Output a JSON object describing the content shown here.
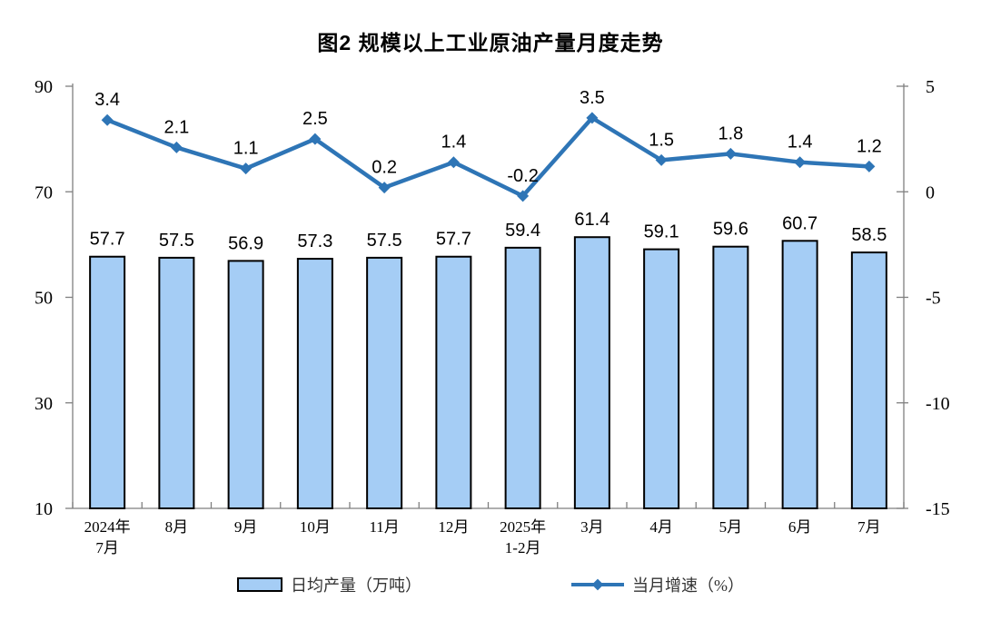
{
  "title": "图2 规模以上工业原油产量月度走势",
  "colors": {
    "bar_fill": "#A5CDF5",
    "bar_border": "#000000",
    "line": "#2E75B6",
    "axis": "#7F7F7F",
    "text": "#000000"
  },
  "legend": {
    "bar_label": "日均产量（万吨）",
    "line_label": "当月增速（%）"
  },
  "chart_data": {
    "type": "bar",
    "subtype": "combo bar + line, dual y-axes",
    "title": "图2 规模以上工业原油产量月度走势",
    "categories": [
      "2024年\n7月",
      "8月",
      "9月",
      "10月",
      "11月",
      "12月",
      "2025年\n1-2月",
      "3月",
      "4月",
      "5月",
      "6月",
      "7月"
    ],
    "series": [
      {
        "name": "日均产量（万吨）",
        "type": "bar",
        "axis": "left",
        "values": [
          57.7,
          57.5,
          56.9,
          57.3,
          57.5,
          57.7,
          59.4,
          61.4,
          59.1,
          59.6,
          60.7,
          58.5
        ]
      },
      {
        "name": "当月增速（%）",
        "type": "line",
        "axis": "right",
        "values": [
          3.4,
          2.1,
          1.1,
          2.5,
          0.2,
          1.4,
          -0.2,
          3.5,
          1.5,
          1.8,
          1.4,
          1.2
        ]
      }
    ],
    "left_axis": {
      "min": 10,
      "max": 90,
      "ticks": [
        10,
        30,
        50,
        70,
        90
      ]
    },
    "right_axis": {
      "min": -15,
      "max": 5,
      "ticks": [
        -15,
        -10,
        -5,
        0,
        5
      ]
    },
    "grid": false,
    "legend_position": "bottom",
    "data_labels": true
  }
}
